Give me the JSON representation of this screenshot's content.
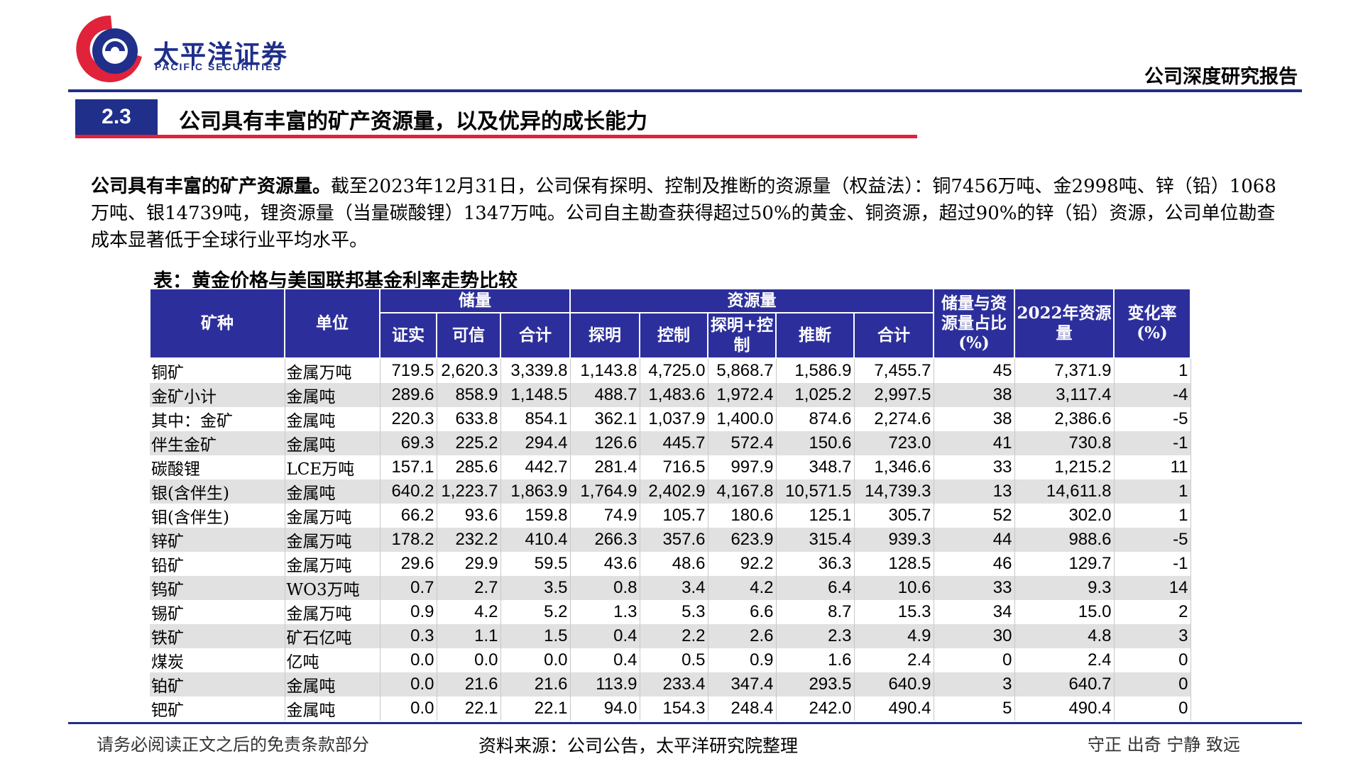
{
  "header": {
    "brand_cn": "太平洋证券",
    "brand_en": "PACIFIC SECURITIES",
    "report_type": "公司深度研究报告",
    "colors": {
      "brand_blue": "#1f2f8a",
      "accent_red": "#e0223a",
      "table_header": "#2c2f9b"
    }
  },
  "section": {
    "number": "2.3",
    "title": "公司具有丰富的矿产资源量，以及优异的成长能力"
  },
  "paragraph": {
    "lead": "公司具有丰富的矿产资源量。",
    "body": "截至2023年12月31日，公司保有探明、控制及推断的资源量（权益法）：铜7456万吨、金2998吨、锌（铅）1068万吨、银14739吨，锂资源量（当量碳酸锂）1347万吨。公司自主勘查获得超过50%的黄金、铜资源，超过90%的锌（铅）资源，公司单位勘查成本显著低于全球行业平均水平。"
  },
  "table": {
    "title": "表：黄金价格与美国联邦基金利率走势比较",
    "headers": {
      "mineral": "矿种",
      "unit": "单位",
      "reserves": "储量",
      "resources": "资源量",
      "ratio": "储量与资源量占比(%)",
      "res2022": "2022年资源量",
      "change": "变化率(%)",
      "proven": "证实",
      "probable": "可信",
      "reserve_total": "合计",
      "measured": "探明",
      "indicated": "控制",
      "meas_ind": "探明+控制",
      "inferred": "推断",
      "resource_total": "合计"
    },
    "rows": [
      [
        "铜矿",
        "金属万吨",
        "719.5",
        "2,620.3",
        "3,339.8",
        "1,143.8",
        "4,725.0",
        "5,868.7",
        "1,586.9",
        "7,455.7",
        "45",
        "7,371.9",
        "1"
      ],
      [
        "金矿小计",
        "金属吨",
        "289.6",
        "858.9",
        "1,148.5",
        "488.7",
        "1,483.6",
        "1,972.4",
        "1,025.2",
        "2,997.5",
        "38",
        "3,117.4",
        "-4"
      ],
      [
        "其中：金矿",
        "金属吨",
        "220.3",
        "633.8",
        "854.1",
        "362.1",
        "1,037.9",
        "1,400.0",
        "874.6",
        "2,274.6",
        "38",
        "2,386.6",
        "-5"
      ],
      [
        "伴生金矿",
        "金属吨",
        "69.3",
        "225.2",
        "294.4",
        "126.6",
        "445.7",
        "572.4",
        "150.6",
        "723.0",
        "41",
        "730.8",
        "-1"
      ],
      [
        "碳酸锂",
        "LCE万吨",
        "157.1",
        "285.6",
        "442.7",
        "281.4",
        "716.5",
        "997.9",
        "348.7",
        "1,346.6",
        "33",
        "1,215.2",
        "11"
      ],
      [
        "银(含伴生)",
        "金属吨",
        "640.2",
        "1,223.7",
        "1,863.9",
        "1,764.9",
        "2,402.9",
        "4,167.8",
        "10,571.5",
        "14,739.3",
        "13",
        "14,611.8",
        "1"
      ],
      [
        "钼(含伴生)",
        "金属万吨",
        "66.2",
        "93.6",
        "159.8",
        "74.9",
        "105.7",
        "180.6",
        "125.1",
        "305.7",
        "52",
        "302.0",
        "1"
      ],
      [
        "锌矿",
        "金属万吨",
        "178.2",
        "232.2",
        "410.4",
        "266.3",
        "357.6",
        "623.9",
        "315.4",
        "939.3",
        "44",
        "988.6",
        "-5"
      ],
      [
        "铅矿",
        "金属万吨",
        "29.6",
        "29.9",
        "59.5",
        "43.6",
        "48.6",
        "92.2",
        "36.3",
        "128.5",
        "46",
        "129.7",
        "-1"
      ],
      [
        "钨矿",
        "WO3万吨",
        "0.7",
        "2.7",
        "3.5",
        "0.8",
        "3.4",
        "4.2",
        "6.4",
        "10.6",
        "33",
        "9.3",
        "14"
      ],
      [
        "锡矿",
        "金属万吨",
        "0.9",
        "4.2",
        "5.2",
        "1.3",
        "5.3",
        "6.6",
        "8.7",
        "15.3",
        "34",
        "15.0",
        "2"
      ],
      [
        "铁矿",
        "矿石亿吨",
        "0.3",
        "1.1",
        "1.5",
        "0.4",
        "2.2",
        "2.6",
        "2.3",
        "4.9",
        "30",
        "4.8",
        "3"
      ],
      [
        "煤炭",
        "亿吨",
        "0.0",
        "0.0",
        "0.0",
        "0.4",
        "0.5",
        "0.9",
        "1.6",
        "2.4",
        "0",
        "2.4",
        "0"
      ],
      [
        "铂矿",
        "金属吨",
        "0.0",
        "21.6",
        "21.6",
        "113.9",
        "233.4",
        "347.4",
        "293.5",
        "640.9",
        "3",
        "640.7",
        "0"
      ],
      [
        "钯矿",
        "金属吨",
        "0.0",
        "22.1",
        "22.1",
        "94.0",
        "154.3",
        "248.4",
        "242.0",
        "490.4",
        "5",
        "490.4",
        "0"
      ]
    ]
  },
  "footer": {
    "disclaimer": "请务必阅读正文之后的免责条款部分",
    "source": "资料来源：公司公告，太平洋研究院整理",
    "motto": "守正 出奇 宁静 致远"
  }
}
